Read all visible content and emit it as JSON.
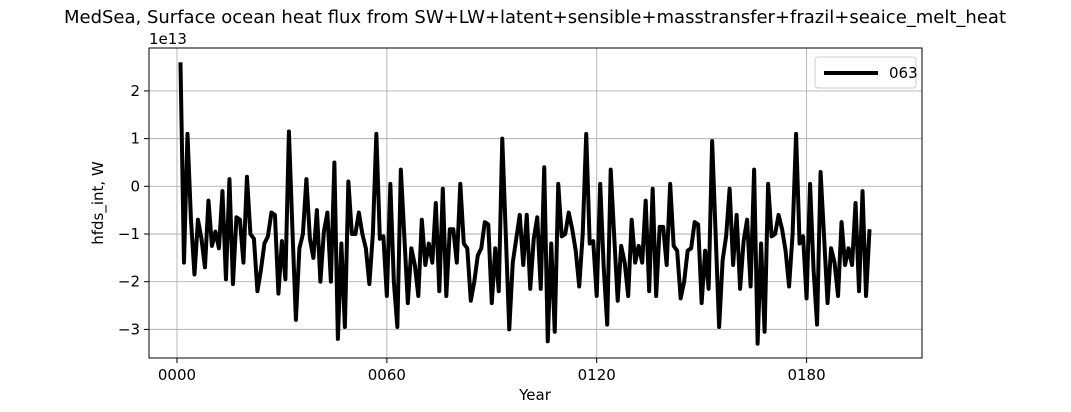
{
  "chart_data": {
    "type": "line",
    "title": "MedSea, Surface ocean heat flux from SW+LW+latent+sensible+masstransfer+frazil+seaice_melt_heat",
    "xlabel": "Year",
    "ylabel": "hfds_int, W",
    "y_offset_label": "1e13",
    "xlim": [
      -8,
      213
    ],
    "ylim": [
      -3.6,
      2.9
    ],
    "x_ticks": [
      0,
      60,
      120,
      180
    ],
    "x_tick_labels": [
      "0000",
      "0060",
      "0120",
      "0180"
    ],
    "y_ticks": [
      -3,
      -2,
      -1,
      0,
      1,
      2
    ],
    "y_tick_labels": [
      "−3",
      "−2",
      "−1",
      "0",
      "1",
      "2"
    ],
    "grid": true,
    "legend_position": "top-right",
    "series": [
      {
        "name": "063",
        "color": "#000000",
        "x_start": 1,
        "x_step": 1,
        "y": [
          2.6,
          -1.6,
          1.1,
          -0.7,
          -1.85,
          -0.7,
          -1.1,
          -1.7,
          -0.3,
          -1.25,
          -0.95,
          -1.3,
          -0.1,
          -1.95,
          0.15,
          -2.05,
          -0.65,
          -0.7,
          -1.6,
          0.2,
          -1.0,
          -1.1,
          -2.2,
          -1.75,
          -1.2,
          -1.05,
          -0.55,
          -0.6,
          -2.25,
          -1.15,
          -1.95,
          1.15,
          -0.9,
          -2.8,
          -1.3,
          -1.0,
          0.15,
          -1.1,
          -1.5,
          -0.5,
          -2.0,
          -0.95,
          -0.55,
          -2.0,
          0.5,
          -3.2,
          -1.2,
          -2.95,
          0.1,
          -1.0,
          -1.0,
          -0.55,
          -1.0,
          -1.3,
          -2.05,
          -1.0,
          1.1,
          -1.1,
          -1.05,
          -2.3,
          0.05,
          -2.0,
          -2.95,
          0.35,
          -1.05,
          -2.45,
          -1.3,
          -1.65,
          -2.3,
          -0.7,
          -1.65,
          -1.2,
          -1.6,
          -0.35,
          -2.2,
          -0.05,
          -2.3,
          -0.9,
          -0.9,
          -1.6,
          0.05,
          -1.2,
          -1.3,
          -2.4,
          -2.0,
          -1.45,
          -1.3,
          -0.75,
          -0.8,
          -2.45,
          -1.3,
          -2.2,
          1.0,
          -1.0,
          -3.0,
          -1.6,
          -1.1,
          -0.6,
          -1.65,
          -0.6,
          -2.15,
          -1.1,
          -0.65,
          -2.15,
          0.4,
          -3.25,
          -1.2,
          -3.05,
          0.05,
          -1.05,
          -1.0,
          -0.55,
          -0.9,
          -1.35,
          -2.1,
          -1.0,
          1.1,
          -1.2,
          -1.15,
          -2.3,
          0.05,
          -1.7,
          -2.9,
          0.35,
          -1.05,
          -2.4,
          -1.25,
          -1.6,
          -2.3,
          -0.7,
          -1.6,
          -1.25,
          -1.6,
          -0.3,
          -2.2,
          -0.05,
          -2.3,
          -0.85,
          -0.85,
          -1.65,
          0.05,
          -1.25,
          -1.35,
          -2.35,
          -2.0,
          -1.35,
          -1.3,
          -0.75,
          -0.8,
          -2.45,
          -1.35,
          -2.15,
          0.95,
          -1.0,
          -2.95,
          -1.55,
          -1.05,
          -0.05,
          -1.65,
          -0.6,
          -2.15,
          -1.15,
          -0.7,
          -2.1,
          0.35,
          -3.3,
          -1.2,
          -3.05,
          0.05,
          -1.05,
          -1.0,
          -0.6,
          -0.9,
          -1.35,
          -2.1,
          -1.0,
          1.1,
          -1.2,
          -1.05,
          -2.35,
          0.05,
          -1.75,
          -2.9,
          0.3,
          -1.05,
          -2.45,
          -1.3,
          -1.6,
          -2.3,
          -0.75,
          -1.65,
          -1.3,
          -1.65,
          -0.35,
          -2.2,
          -0.1,
          -2.3,
          -0.9
        ]
      }
    ]
  }
}
